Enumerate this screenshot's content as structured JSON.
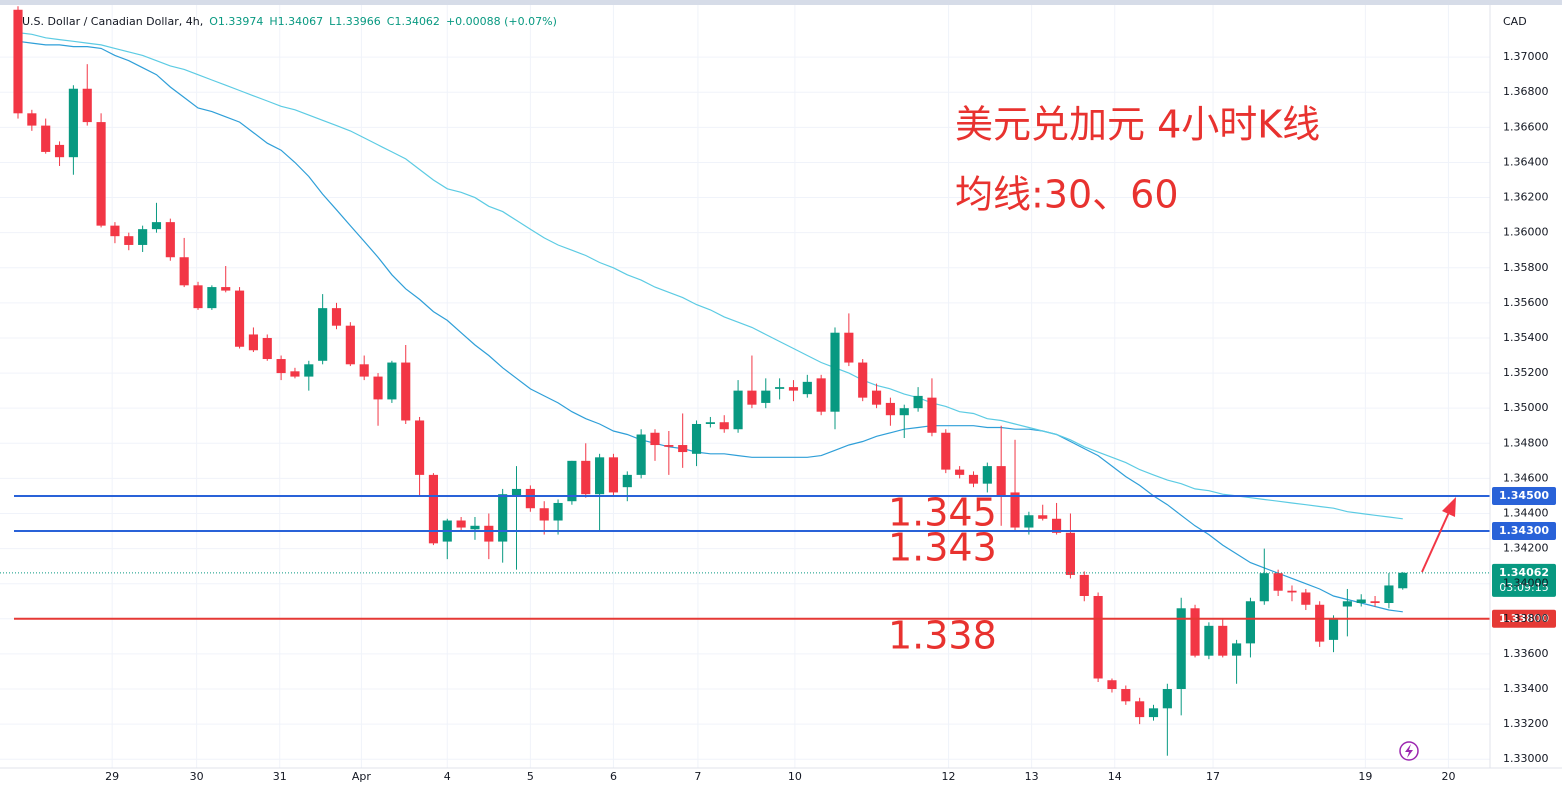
{
  "header": {
    "symbol": "U.S. Dollar / Canadian Dollar, 4h,",
    "ohlc": [
      "O1.33974",
      "H1.34067",
      "L1.33966",
      "C1.34062",
      "+0.00088 (+0.07%)"
    ]
  },
  "chart_data": {
    "type": "candlestick",
    "title": "美元兑加元 4小时K线",
    "subtitle": "均线:30、60",
    "currency": "CAD",
    "up_color": "#089981",
    "down_color": "#f23645",
    "open": [
      1.3727,
      1.3668,
      1.3661,
      1.365,
      1.3643,
      1.3682,
      1.3663,
      1.3604,
      1.3598,
      1.3593,
      1.3602,
      1.3606,
      1.3586,
      1.357,
      1.3557,
      1.3569,
      1.3567,
      1.3542,
      1.354,
      1.3528,
      1.3521,
      1.3518,
      1.3527,
      1.3557,
      1.3547,
      1.3525,
      1.3518,
      1.3505,
      1.3526,
      1.3493,
      1.3462,
      1.3424,
      1.3436,
      1.3431,
      1.3433,
      1.3424,
      1.345,
      1.3454,
      1.3443,
      1.3436,
      1.3447,
      1.347,
      1.3451,
      1.3472,
      1.3455,
      1.3462,
      1.3486,
      1.3479,
      1.3479,
      1.3474,
      1.3491,
      1.3492,
      1.3488,
      1.351,
      1.3503,
      1.3511,
      1.3512,
      1.3508,
      1.3517,
      1.3498,
      1.3543,
      1.3526,
      1.351,
      1.3503,
      1.3496,
      1.35,
      1.3506,
      1.3486,
      1.3465,
      1.3462,
      1.3457,
      1.3467,
      1.3452,
      1.3432,
      1.3439,
      1.3437,
      1.3429,
      1.3405,
      1.3393,
      1.3345,
      1.334,
      1.3333,
      1.3324,
      1.3329,
      1.334,
      1.3386,
      1.3359,
      1.3376,
      1.3359,
      1.3366,
      1.339,
      1.3406,
      1.3396,
      1.3395,
      1.3388,
      1.3368,
      1.3387,
      1.3389,
      1.339,
      1.3389,
      1.33974
    ],
    "high": [
      1.3729,
      1.367,
      1.3665,
      1.3652,
      1.3684,
      1.3696,
      1.3668,
      1.3606,
      1.36,
      1.3604,
      1.3617,
      1.3608,
      1.3597,
      1.3572,
      1.357,
      1.3581,
      1.3569,
      1.3546,
      1.3542,
      1.353,
      1.3523,
      1.3527,
      1.3565,
      1.356,
      1.3549,
      1.353,
      1.352,
      1.3527,
      1.3536,
      1.3495,
      1.3463,
      1.3437,
      1.3438,
      1.3438,
      1.344,
      1.3454,
      1.3467,
      1.3456,
      1.3447,
      1.3448,
      1.347,
      1.348,
      1.3474,
      1.3474,
      1.3464,
      1.3488,
      1.3488,
      1.3487,
      1.3497,
      1.3493,
      1.3495,
      1.3496,
      1.3516,
      1.353,
      1.3517,
      1.3517,
      1.3516,
      1.3519,
      1.3519,
      1.3546,
      1.3554,
      1.3528,
      1.3514,
      1.3506,
      1.3502,
      1.3512,
      1.3517,
      1.3488,
      1.3467,
      1.3464,
      1.3469,
      1.349,
      1.3482,
      1.3441,
      1.3445,
      1.3446,
      1.344,
      1.3407,
      1.3395,
      1.3346,
      1.3342,
      1.3335,
      1.3331,
      1.3343,
      1.3392,
      1.3388,
      1.3378,
      1.338,
      1.3368,
      1.3392,
      1.342,
      1.3408,
      1.3399,
      1.3397,
      1.339,
      1.3382,
      1.3397,
      1.3394,
      1.3393,
      1.3406,
      1.34067
    ],
    "low": [
      1.3665,
      1.3658,
      1.3645,
      1.3638,
      1.3633,
      1.3661,
      1.3603,
      1.3594,
      1.359,
      1.3589,
      1.36,
      1.3584,
      1.3569,
      1.3556,
      1.3556,
      1.3566,
      1.3534,
      1.3532,
      1.3527,
      1.3516,
      1.3517,
      1.351,
      1.3525,
      1.3545,
      1.3524,
      1.3516,
      1.349,
      1.3503,
      1.3491,
      1.345,
      1.3422,
      1.3414,
      1.343,
      1.3425,
      1.3414,
      1.3412,
      1.3408,
      1.3441,
      1.3428,
      1.3428,
      1.3445,
      1.3449,
      1.343,
      1.345,
      1.3447,
      1.346,
      1.347,
      1.3462,
      1.3466,
      1.3467,
      1.3489,
      1.3486,
      1.3486,
      1.35,
      1.35,
      1.3505,
      1.3504,
      1.3506,
      1.3496,
      1.3488,
      1.3524,
      1.3504,
      1.35,
      1.349,
      1.3483,
      1.3498,
      1.3484,
      1.3463,
      1.346,
      1.3455,
      1.3452,
      1.3433,
      1.343,
      1.3428,
      1.3436,
      1.3428,
      1.3403,
      1.339,
      1.3344,
      1.3338,
      1.3331,
      1.332,
      1.3322,
      1.3302,
      1.3325,
      1.3358,
      1.3357,
      1.3358,
      1.3343,
      1.3358,
      1.3388,
      1.3393,
      1.339,
      1.3385,
      1.3364,
      1.3361,
      1.337,
      1.3387,
      1.3387,
      1.3386,
      1.33966
    ],
    "close": [
      1.3668,
      1.3661,
      1.3646,
      1.3643,
      1.3682,
      1.3663,
      1.3604,
      1.3598,
      1.3593,
      1.3602,
      1.3606,
      1.3586,
      1.357,
      1.3557,
      1.3569,
      1.3567,
      1.3535,
      1.3533,
      1.3528,
      1.352,
      1.3518,
      1.3525,
      1.3557,
      1.3547,
      1.3525,
      1.3518,
      1.3505,
      1.3526,
      1.3493,
      1.3462,
      1.3423,
      1.3436,
      1.3432,
      1.3433,
      1.3424,
      1.3451,
      1.3454,
      1.3443,
      1.3436,
      1.3446,
      1.347,
      1.3451,
      1.3472,
      1.3452,
      1.3462,
      1.3485,
      1.3479,
      1.3478,
      1.3475,
      1.3491,
      1.3492,
      1.3488,
      1.351,
      1.3502,
      1.351,
      1.3512,
      1.351,
      1.3515,
      1.3498,
      1.3543,
      1.3526,
      1.3506,
      1.3502,
      1.3496,
      1.35,
      1.3507,
      1.3486,
      1.3465,
      1.3462,
      1.3457,
      1.3467,
      1.345,
      1.3432,
      1.3439,
      1.3437,
      1.3429,
      1.3405,
      1.3393,
      1.3346,
      1.334,
      1.3333,
      1.3324,
      1.3329,
      1.334,
      1.3386,
      1.3359,
      1.3376,
      1.3359,
      1.3366,
      1.339,
      1.3406,
      1.3396,
      1.3395,
      1.3388,
      1.3367,
      1.338,
      1.339,
      1.3391,
      1.3389,
      1.3399,
      1.34062
    ],
    "moving_averages": [
      {
        "color": "#2f9fd8",
        "values": [
          1.3709,
          1.3708,
          1.3707,
          1.3707,
          1.3706,
          1.3706,
          1.3705,
          1.3701,
          1.3698,
          1.3694,
          1.369,
          1.3683,
          1.3677,
          1.3671,
          1.3669,
          1.3666,
          1.3663,
          1.3657,
          1.3651,
          1.3647,
          1.364,
          1.3632,
          1.3622,
          1.3613,
          1.3604,
          1.3595,
          1.3586,
          1.3576,
          1.3568,
          1.3562,
          1.3555,
          1.355,
          1.3543,
          1.3536,
          1.353,
          1.3523,
          1.3517,
          1.3511,
          1.3507,
          1.3503,
          1.3498,
          1.3494,
          1.3491,
          1.3487,
          1.3485,
          1.3482,
          1.348,
          1.3478,
          1.3477,
          1.3475,
          1.3474,
          1.3474,
          1.3473,
          1.3472,
          1.3472,
          1.3472,
          1.3472,
          1.3472,
          1.3473,
          1.3476,
          1.3479,
          1.3481,
          1.3484,
          1.3486,
          1.3488,
          1.3489,
          1.349,
          1.349,
          1.349,
          1.349,
          1.3489,
          1.3489,
          1.3488,
          1.3488,
          1.3487,
          1.3485,
          1.3481,
          1.3477,
          1.3473,
          1.3467,
          1.3461,
          1.3456,
          1.345,
          1.3445,
          1.3439,
          1.3433,
          1.3428,
          1.3422,
          1.3417,
          1.3412,
          1.3409,
          1.3406,
          1.3403,
          1.34,
          1.3397,
          1.3393,
          1.3391,
          1.3389,
          1.3387,
          1.3385,
          1.3384
        ]
      },
      {
        "color": "#5ccbe3",
        "values": [
          1.3714,
          1.3713,
          1.3711,
          1.371,
          1.3709,
          1.3708,
          1.3707,
          1.3705,
          1.3703,
          1.3701,
          1.3698,
          1.3695,
          1.3693,
          1.369,
          1.3687,
          1.3684,
          1.3681,
          1.3678,
          1.3675,
          1.3672,
          1.367,
          1.3667,
          1.3664,
          1.3661,
          1.3658,
          1.3654,
          1.365,
          1.3646,
          1.3642,
          1.3636,
          1.363,
          1.3625,
          1.3623,
          1.362,
          1.3615,
          1.3612,
          1.3607,
          1.3602,
          1.3597,
          1.3593,
          1.359,
          1.3587,
          1.3583,
          1.358,
          1.3576,
          1.3573,
          1.3569,
          1.3566,
          1.3563,
          1.3559,
          1.3556,
          1.3552,
          1.3549,
          1.3546,
          1.3542,
          1.3538,
          1.3534,
          1.353,
          1.3526,
          1.3523,
          1.352,
          1.3516,
          1.3513,
          1.3511,
          1.3508,
          1.3506,
          1.3503,
          1.3501,
          1.3498,
          1.3497,
          1.3494,
          1.3493,
          1.3491,
          1.3489,
          1.3487,
          1.3485,
          1.3482,
          1.3478,
          1.3475,
          1.3472,
          1.3469,
          1.3465,
          1.3462,
          1.3459,
          1.3457,
          1.3454,
          1.3453,
          1.3451,
          1.345,
          1.3449,
          1.3448,
          1.3447,
          1.3446,
          1.3445,
          1.3444,
          1.3443,
          1.3441,
          1.344,
          1.3439,
          1.3438,
          1.3437
        ]
      }
    ],
    "levels": [
      {
        "value": 1.345,
        "label": "1.34500",
        "color": "#2962d8",
        "annotation": "1.345"
      },
      {
        "value": 1.343,
        "label": "1.34300",
        "color": "#2962d8",
        "annotation": "1.343"
      },
      {
        "value": 1.338,
        "label": "1.33800",
        "color": "#e53935",
        "annotation": "1.338"
      }
    ],
    "last_price": {
      "value": 1.34062,
      "label": "1.34062",
      "countdown": "03:09:15"
    },
    "ylim": [
      1.3295,
      1.3728
    ],
    "yticks": [
      {
        "value": 1.33,
        "label": "1.33000"
      },
      {
        "value": 1.332,
        "label": "1.33200"
      },
      {
        "value": 1.334,
        "label": "1.33400"
      },
      {
        "value": 1.336,
        "label": "1.33600"
      },
      {
        "value": 1.338,
        "label": "1.33800"
      },
      {
        "value": 1.34,
        "label": "1.34000"
      },
      {
        "value": 1.342,
        "label": "1.34200"
      },
      {
        "value": 1.344,
        "label": "1.34400"
      },
      {
        "value": 1.346,
        "label": "1.34600"
      },
      {
        "value": 1.348,
        "label": "1.34800"
      },
      {
        "value": 1.35,
        "label": "1.35000"
      },
      {
        "value": 1.352,
        "label": "1.35200"
      },
      {
        "value": 1.354,
        "label": "1.35400"
      },
      {
        "value": 1.356,
        "label": "1.35600"
      },
      {
        "value": 1.358,
        "label": "1.35800"
      },
      {
        "value": 1.36,
        "label": "1.36000"
      },
      {
        "value": 1.362,
        "label": "1.36200"
      },
      {
        "value": 1.364,
        "label": "1.36400"
      },
      {
        "value": 1.366,
        "label": "1.36600"
      },
      {
        "value": 1.368,
        "label": "1.36800"
      },
      {
        "value": 1.37,
        "label": "1.37000"
      }
    ],
    "xlim": [
      -1.3,
      106.3
    ],
    "xticks": [
      {
        "value": 6.8,
        "label": "29"
      },
      {
        "value": 12.9,
        "label": "30"
      },
      {
        "value": 18.9,
        "label": "31"
      },
      {
        "value": 24.8,
        "label": "Apr"
      },
      {
        "value": 31,
        "label": "4"
      },
      {
        "value": 37,
        "label": "5"
      },
      {
        "value": 43,
        "label": "6"
      },
      {
        "value": 49.1,
        "label": "7"
      },
      {
        "value": 56.1,
        "label": "10"
      },
      {
        "value": 67.2,
        "label": "12"
      },
      {
        "value": 73.2,
        "label": "13"
      },
      {
        "value": 79.2,
        "label": "14"
      },
      {
        "value": 86.3,
        "label": "17"
      },
      {
        "value": 97.3,
        "label": "19"
      },
      {
        "value": 103.3,
        "label": "20"
      }
    ],
    "grid": true
  }
}
